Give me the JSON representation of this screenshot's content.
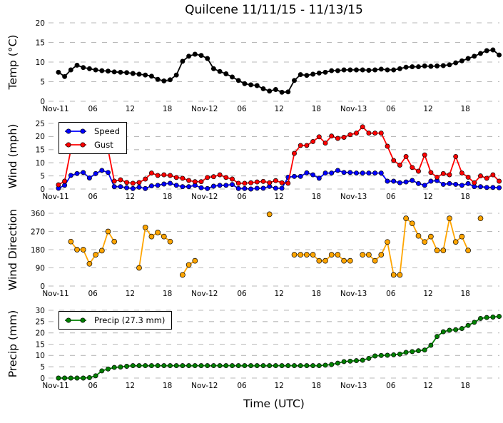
{
  "title": "Quilcene 11/11/15 - 11/13/15",
  "xlabel": "Time (UTC)",
  "colors": {
    "temperature": "#000000",
    "wind_speed": "#0000ff",
    "wind_gust": "#ff0000",
    "wind_direction": "#ffa500",
    "precip": "#008000",
    "grid": "#b9b9b9",
    "marker_edge": "#000000",
    "background": "#ffffff"
  },
  "x_ticks": [
    {
      "hour": 0,
      "label": "Nov-11"
    },
    {
      "hour": 6,
      "label": "06"
    },
    {
      "hour": 12,
      "label": "12"
    },
    {
      "hour": 18,
      "label": "18"
    },
    {
      "hour": 24,
      "label": "Nov-12"
    },
    {
      "hour": 30,
      "label": "06"
    },
    {
      "hour": 36,
      "label": "12"
    },
    {
      "hour": 42,
      "label": "18"
    },
    {
      "hour": 48,
      "label": "Nov-13"
    },
    {
      "hour": 54,
      "label": "06"
    },
    {
      "hour": 60,
      "label": "12"
    },
    {
      "hour": 66,
      "label": "18"
    }
  ],
  "chart_data": [
    {
      "type": "line",
      "name": "temperature",
      "ylabel": "Temp (°C)",
      "ylim": [
        0,
        20
      ],
      "yticks": [
        0,
        5,
        10,
        15,
        20
      ],
      "x_unit": "hours since Nov-11 00:00 UTC",
      "x_step": 1,
      "color": "#000000",
      "values": [
        7.4,
        6.3,
        8.0,
        9.2,
        8.6,
        8.3,
        8.0,
        7.8,
        7.7,
        7.5,
        7.4,
        7.3,
        7.1,
        6.9,
        6.7,
        6.4,
        5.6,
        5.2,
        5.5,
        6.7,
        10.2,
        11.5,
        12.0,
        11.7,
        10.9,
        8.3,
        7.6,
        7.0,
        6.2,
        5.3,
        4.5,
        4.2,
        4.0,
        3.2,
        2.6,
        3.0,
        2.3,
        2.4,
        5.3,
        6.8,
        6.6,
        6.9,
        7.2,
        7.4,
        7.8,
        7.8,
        8.0,
        8.0,
        8.0,
        8.0,
        7.9,
        8.0,
        8.2,
        8.0,
        8.0,
        8.3,
        8.7,
        8.8,
        8.8,
        9.0,
        8.9,
        9.0,
        9.1,
        9.3,
        9.8,
        10.3,
        10.9,
        11.5,
        12.2,
        12.9,
        13.1,
        11.8
      ]
    },
    {
      "type": "line",
      "name": "wind",
      "ylabel": "Wind (mph)",
      "ylim": [
        0,
        25
      ],
      "yticks": [
        0,
        5,
        10,
        15,
        20,
        25
      ],
      "x_unit": "hours since Nov-11 00:00 UTC",
      "x_step": 1,
      "legend_position": "upper-left",
      "series": [
        {
          "name": "Speed",
          "color": "#0000ff",
          "values": [
            0.3,
            1.4,
            5.2,
            5.9,
            6.3,
            4.2,
            5.9,
            7.1,
            6.3,
            0.9,
            0.9,
            0.5,
            0.2,
            0.7,
            0.2,
            1.2,
            1.4,
            1.9,
            2.2,
            1.4,
            0.9,
            0.9,
            1.4,
            0.5,
            0.2,
            1.1,
            1.4,
            1.4,
            1.7,
            0.2,
            0.2,
            0.0,
            0.3,
            0.3,
            1.0,
            0.3,
            0.3,
            4.5,
            4.8,
            4.8,
            6.2,
            5.4,
            4.1,
            6.1,
            6.1,
            7.1,
            6.3,
            6.3,
            6.1,
            6.1,
            6.1,
            6.1,
            6.1,
            3.0,
            3.0,
            2.4,
            2.7,
            3.3,
            2.1,
            1.4,
            3.0,
            3.2,
            1.8,
            2.1,
            1.8,
            1.4,
            2.1,
            0.9,
            0.9,
            0.6,
            0.6,
            0.5
          ]
        },
        {
          "name": "Gust",
          "color": "#ff0000",
          "values": [
            1.6,
            3.0,
            15.0,
            16.0,
            16.5,
            16.0,
            15.5,
            15.5,
            15.0,
            3.0,
            3.5,
            2.5,
            2.2,
            2.5,
            3.8,
            6.1,
            5.2,
            5.4,
            5.2,
            4.4,
            4.1,
            3.3,
            2.8,
            2.8,
            4.4,
            4.7,
            5.4,
            4.4,
            3.8,
            2.2,
            2.2,
            2.4,
            2.7,
            2.9,
            2.4,
            3.2,
            2.4,
            2.2,
            13.6,
            16.6,
            16.6,
            18.1,
            19.9,
            17.5,
            20.2,
            19.3,
            19.7,
            20.7,
            21.3,
            23.7,
            21.3,
            21.3,
            21.3,
            16.3,
            10.9,
            9.1,
            12.4,
            8.2,
            6.8,
            13.0,
            6.3,
            4.5,
            5.9,
            5.4,
            12.4,
            6.1,
            4.5,
            2.4,
            5.0,
            4.1,
            5.4,
            3.0
          ]
        }
      ]
    },
    {
      "type": "scatter",
      "name": "wind-direction",
      "ylabel": "Wind Direction",
      "ylim": [
        0,
        360
      ],
      "yticks": [
        0,
        90,
        180,
        270,
        360
      ],
      "x_unit": "hours since Nov-11 00:00 UTC",
      "color": "#ffa500",
      "points": [
        [
          2,
          220
        ],
        [
          3,
          180
        ],
        [
          4,
          180
        ],
        [
          5,
          110
        ],
        [
          6,
          155
        ],
        [
          7,
          175
        ],
        [
          8,
          270
        ],
        [
          9,
          220
        ],
        [
          13,
          90
        ],
        [
          14,
          290
        ],
        [
          15,
          245
        ],
        [
          16,
          265
        ],
        [
          17,
          245
        ],
        [
          18,
          220
        ],
        [
          20,
          55
        ],
        [
          21,
          105
        ],
        [
          22,
          125
        ],
        [
          34,
          355
        ],
        [
          38,
          155
        ],
        [
          39,
          155
        ],
        [
          40,
          155
        ],
        [
          41,
          155
        ],
        [
          42,
          125
        ],
        [
          43,
          125
        ],
        [
          44,
          155
        ],
        [
          45,
          155
        ],
        [
          46,
          125
        ],
        [
          47,
          125
        ],
        [
          49,
          155
        ],
        [
          50,
          155
        ],
        [
          51,
          125
        ],
        [
          52,
          155
        ],
        [
          53,
          218
        ],
        [
          54,
          55
        ],
        [
          55,
          55
        ],
        [
          56,
          335
        ],
        [
          57,
          310
        ],
        [
          58,
          248
        ],
        [
          59,
          218
        ],
        [
          60,
          245
        ],
        [
          61,
          176
        ],
        [
          62,
          176
        ],
        [
          63,
          335
        ],
        [
          64,
          218
        ],
        [
          65,
          245
        ],
        [
          66,
          176
        ],
        [
          68,
          335
        ]
      ]
    },
    {
      "type": "line",
      "name": "precip",
      "ylabel": "Precip (mm)",
      "ylim": [
        0,
        30
      ],
      "yticks": [
        0,
        5,
        10,
        15,
        20,
        25,
        30
      ],
      "x_unit": "hours since Nov-11 00:00 UTC",
      "x_step": 1,
      "legend_label": "Precip (27.3 mm)",
      "total_mm": 27.3,
      "color": "#008000",
      "values": [
        0,
        0,
        0,
        0,
        0,
        0.2,
        1.0,
        3.2,
        4.0,
        4.7,
        4.9,
        5.2,
        5.5,
        5.5,
        5.5,
        5.5,
        5.5,
        5.5,
        5.5,
        5.5,
        5.5,
        5.5,
        5.5,
        5.5,
        5.5,
        5.5,
        5.5,
        5.5,
        5.5,
        5.5,
        5.5,
        5.5,
        5.5,
        5.5,
        5.5,
        5.5,
        5.5,
        5.5,
        5.5,
        5.5,
        5.5,
        5.5,
        5.5,
        5.7,
        6.0,
        6.6,
        7.3,
        7.5,
        7.7,
        7.9,
        8.7,
        9.8,
        10.0,
        10.1,
        10.3,
        10.6,
        11.4,
        11.7,
        12.1,
        12.4,
        14.5,
        18.4,
        20.5,
        21.2,
        21.4,
        21.9,
        23.3,
        24.7,
        26.4,
        26.8,
        27.0,
        27.3
      ]
    }
  ]
}
